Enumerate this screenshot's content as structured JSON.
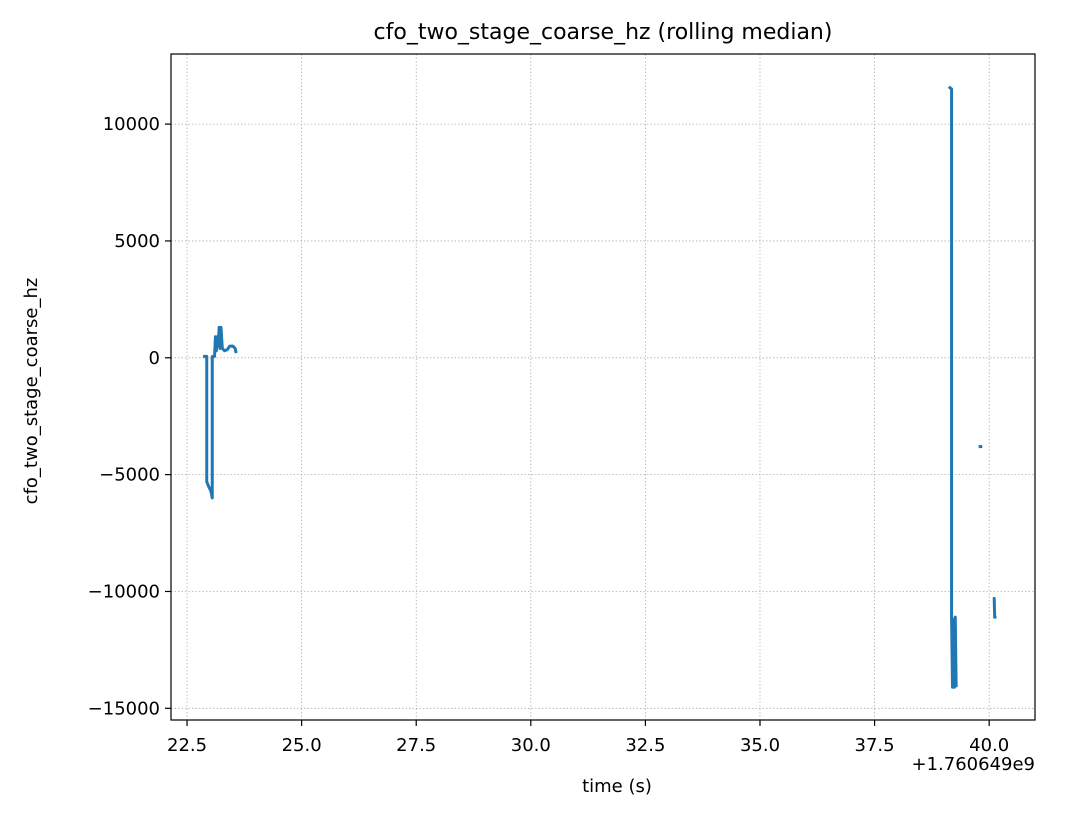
{
  "chart_data": {
    "type": "line",
    "title": "cfo_two_stage_coarse_hz (rolling median)",
    "xlabel": "time (s)",
    "ylabel": "cfo_two_stage_coarse_hz",
    "x_offset_label": "+1.760649e9",
    "xlim": [
      22.15,
      41.0
    ],
    "ylim": [
      -15500,
      13000
    ],
    "x_ticks": [
      22.5,
      25.0,
      27.5,
      30.0,
      32.5,
      35.0,
      37.5,
      40.0
    ],
    "x_tick_labels": [
      "22.5",
      "25.0",
      "27.5",
      "30.0",
      "32.5",
      "35.0",
      "37.5",
      "40.0"
    ],
    "y_ticks": [
      10000,
      5000,
      0,
      -5000,
      -10000,
      -15000
    ],
    "y_tick_labels": [
      "10000",
      "5000",
      "0",
      "−5000",
      "−10000",
      "−15000"
    ],
    "grid": true,
    "color": "#1f77b4",
    "series": [
      {
        "segments": [
          [
            [
              22.85,
              60
            ],
            [
              22.9,
              60
            ],
            [
              22.93,
              60
            ],
            [
              22.93,
              -5300
            ],
            [
              22.97,
              -5500
            ],
            [
              23.02,
              -5700
            ],
            [
              23.05,
              -6000
            ],
            [
              23.05,
              50
            ],
            [
              23.1,
              60
            ],
            [
              23.12,
              900
            ],
            [
              23.14,
              300
            ],
            [
              23.16,
              900
            ],
            [
              23.18,
              500
            ],
            [
              23.2,
              1300
            ],
            [
              23.22,
              400
            ],
            [
              23.24,
              1300
            ],
            [
              23.27,
              400
            ],
            [
              23.32,
              300
            ],
            [
              23.38,
              350
            ],
            [
              23.43,
              500
            ],
            [
              23.5,
              500
            ],
            [
              23.55,
              400
            ],
            [
              23.57,
              200
            ]
          ],
          [
            [
              39.12,
              11600
            ],
            [
              39.18,
              11500
            ],
            [
              39.18,
              -11100
            ],
            [
              39.2,
              -14100
            ],
            [
              39.22,
              -11200
            ],
            [
              39.24,
              -14100
            ],
            [
              39.26,
              -11100
            ],
            [
              39.28,
              -14100
            ]
          ],
          [
            [
              39.77,
              -3800
            ],
            [
              39.85,
              -3800
            ]
          ],
          [
            [
              40.08,
              -10300
            ],
            [
              40.11,
              -10300
            ],
            [
              40.12,
              -11100
            ],
            [
              40.16,
              -11100
            ]
          ]
        ]
      }
    ]
  }
}
